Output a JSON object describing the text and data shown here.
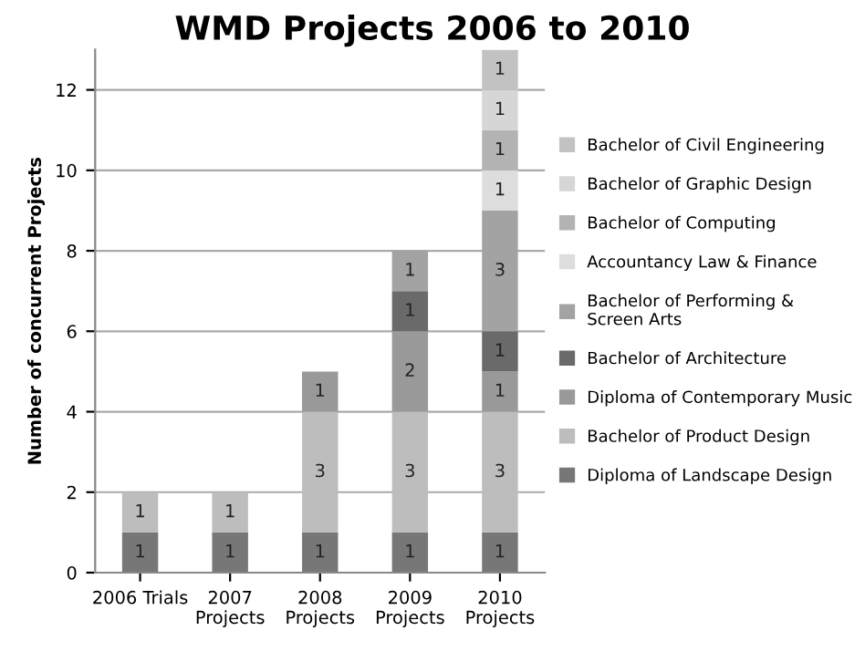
{
  "chart_data": {
    "type": "bar",
    "title": "WMD Projects 2006 to 2010",
    "ylabel": "Number of concurrent Projects",
    "categories": [
      "2006 Trials",
      "2007\nProjects",
      "2008\nProjects",
      "2009\nProjects",
      "2010\nProjects"
    ],
    "stacked": true,
    "data_labels": true,
    "grid": "y",
    "legend": "right",
    "ylim": [
      0,
      13
    ],
    "yticks": [
      0,
      2,
      4,
      6,
      8,
      10,
      12
    ],
    "series": [
      {
        "name": "Diploma of Landscape Design",
        "color": "#777777",
        "values": [
          1,
          1,
          1,
          1,
          1
        ]
      },
      {
        "name": "Bachelor of Product Design",
        "color": "#bdbdbd",
        "values": [
          1,
          1,
          3,
          3,
          3
        ]
      },
      {
        "name": "Diploma of Contemporary Music",
        "color": "#999999",
        "values": [
          null,
          null,
          1,
          2,
          1
        ]
      },
      {
        "name": "Bachelor of Architecture",
        "color": "#6a6a6a",
        "values": [
          null,
          null,
          null,
          1,
          1
        ]
      },
      {
        "name": "Bachelor of Performing &\nScreen Arts",
        "color": "#a3a3a3",
        "values": [
          null,
          null,
          null,
          1,
          3
        ]
      },
      {
        "name": "Accountancy Law & Finance",
        "color": "#dddddd",
        "values": [
          null,
          null,
          null,
          null,
          1
        ]
      },
      {
        "name": "Bachelor of Computing",
        "color": "#b3b3b3",
        "values": [
          null,
          null,
          null,
          null,
          1
        ]
      },
      {
        "name": "Bachelor of Graphic Design",
        "color": "#d6d6d6",
        "values": [
          null,
          null,
          null,
          null,
          1
        ]
      },
      {
        "name": "Bachelor of Civil Engineering",
        "color": "#c2c2c2",
        "values": [
          null,
          null,
          null,
          null,
          1
        ]
      }
    ]
  }
}
